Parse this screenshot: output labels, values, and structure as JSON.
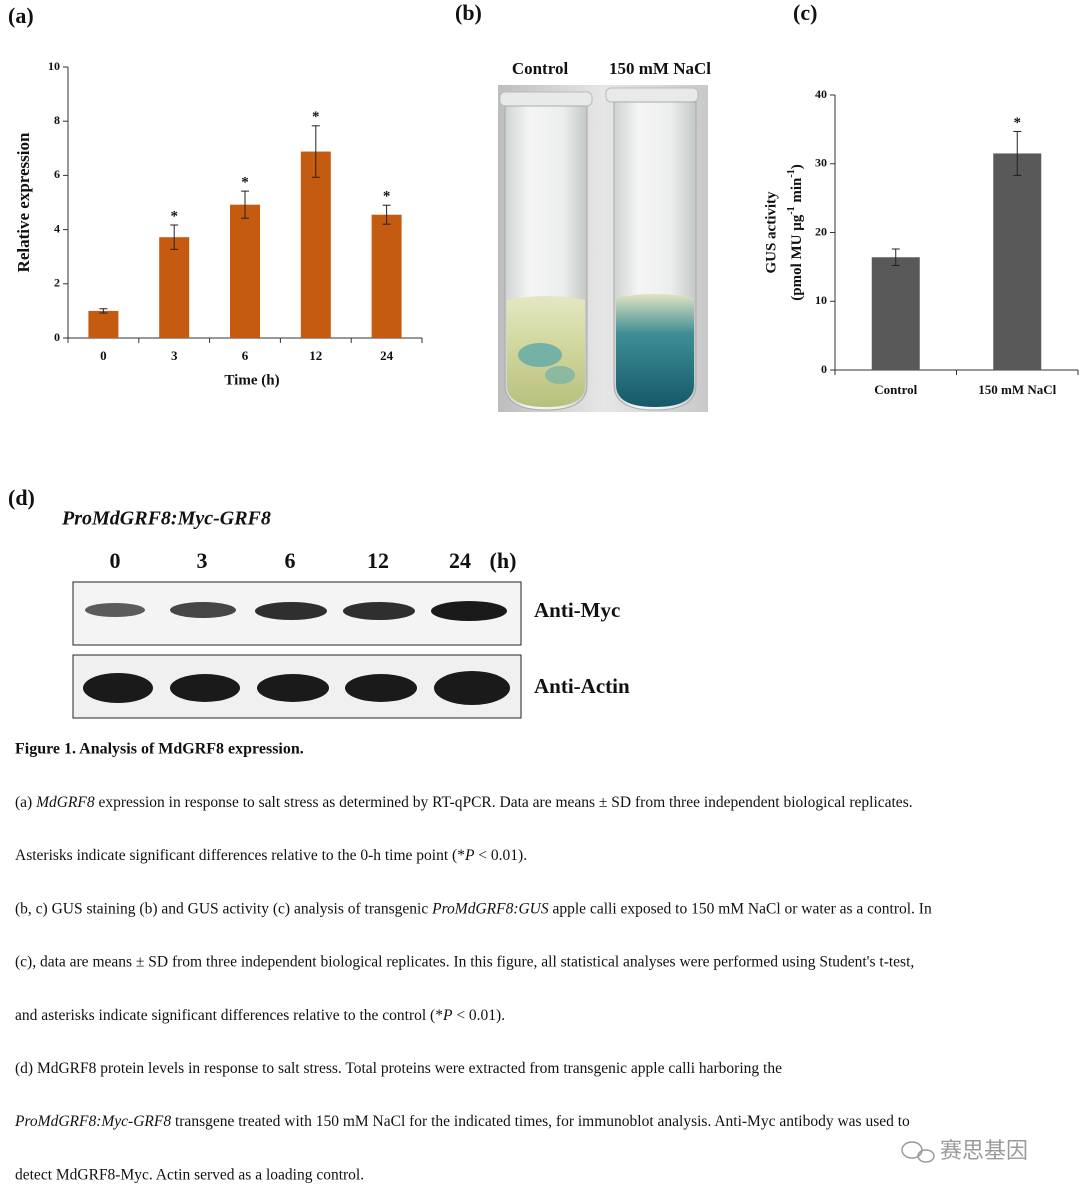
{
  "chart_data": [
    {
      "type": "bar",
      "categories": [
        "0",
        "3",
        "6",
        "12",
        "24"
      ],
      "values": [
        1.0,
        3.72,
        4.92,
        6.88,
        4.55
      ],
      "errors": [
        0.08,
        0.45,
        0.5,
        0.95,
        0.35
      ],
      "significance": [
        null,
        "*",
        "*",
        "*",
        "*"
      ],
      "color": "#c55a11",
      "ylim": [
        0,
        10
      ],
      "yticks": [
        0,
        2,
        4,
        6,
        8,
        10
      ],
      "xlabel": "Time (h)",
      "ylabel": "Relative expression"
    },
    {
      "type": "bar",
      "categories": [
        "Control",
        "150 mM NaCl"
      ],
      "values": [
        16.4,
        31.5
      ],
      "errors": [
        1.2,
        3.2
      ],
      "significance": [
        null,
        "*"
      ],
      "color": "#595959",
      "ylim": [
        0,
        40
      ],
      "yticks": [
        0,
        10,
        20,
        30,
        40
      ],
      "ylabel": "GUS activity",
      "ylabel_unit": [
        "(pmol MU μg",
        "-1",
        " min",
        "-1",
        ")"
      ]
    }
  ],
  "figure": {
    "panels": [
      "(a)",
      "(b)",
      "(c)",
      "(d)"
    ],
    "photo_labels": [
      "Control",
      "150 mM NaCl"
    ],
    "blot": {
      "title": "ProMdGRF8:Myc-GRF8",
      "lanes": [
        "0",
        "3",
        "6",
        "12",
        "24"
      ],
      "unit": "(h)",
      "rows": [
        "Anti-Myc",
        "Anti-Actin"
      ]
    },
    "caption_title": "Figure 1. Analysis of MdGRF8 expression.",
    "caption_lines": [
      [
        "(a) ",
        {
          "text": "MdGRF8",
          "italic": true
        },
        " expression in response to salt stress as determined by RT-qPCR. Data are means ± SD from three independent biological replicates."
      ],
      [
        "Asterisks indicate significant differences relative to the 0-h time point (*",
        {
          "text": "P",
          "italic": true
        },
        " < 0.01)."
      ],
      [
        "(b, c) GUS staining (b) and GUS activity (c) analysis of transgenic ",
        {
          "text": "ProMdGRF8:GUS",
          "italic": true
        },
        " apple calli exposed to 150 mM NaCl or water as a control. In"
      ],
      [
        "(c), data are means ± SD from three independent biological replicates. In this figure, all statistical analyses were performed using Student's t-test,"
      ],
      [
        "and asterisks indicate significant differences relative to the control (*",
        {
          "text": "P",
          "italic": true
        },
        " < 0.01)."
      ],
      [
        "(d) MdGRF8 protein levels in response to salt stress. Total proteins were extracted from transgenic apple calli harboring the"
      ],
      [
        {
          "text": "ProMdGRF8:Myc-GRF8",
          "italic": true
        },
        " transgene treated with 150 mM NaCl for the indicated times, for immunoblot analysis. Anti-Myc antibody was used to"
      ],
      [
        "detect MdGRF8-Myc. Actin served as a loading control."
      ]
    ],
    "watermark": "赛思基因"
  }
}
